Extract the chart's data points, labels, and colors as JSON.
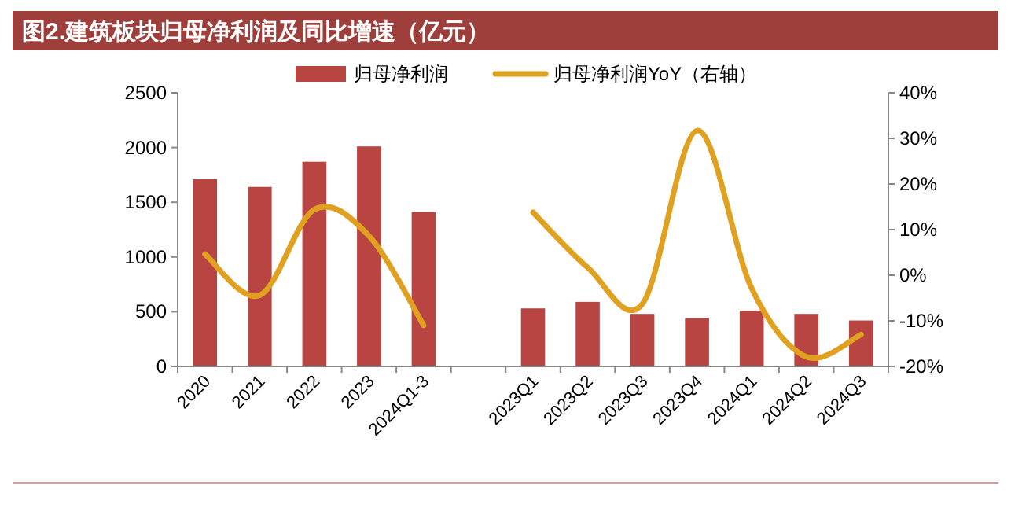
{
  "chart_data": {
    "type": "bar",
    "title": "图2.建筑板块归母净利润及同比增速（亿元）",
    "categories": [
      "2020",
      "2021",
      "2022",
      "2023",
      "2024Q1-3",
      null,
      "2023Q1",
      "2023Q2",
      "2023Q3",
      "2023Q4",
      "2024Q1",
      "2024Q2",
      "2024Q3"
    ],
    "series": [
      {
        "name": "归母净利润",
        "color": "#b94543",
        "values": [
          1710,
          1640,
          1870,
          2010,
          1410,
          null,
          530,
          590,
          480,
          440,
          510,
          480,
          420
        ]
      },
      {
        "name": "归母净利润YoY（右轴）",
        "type": "line",
        "axis": "y2",
        "color": "#e0a020",
        "values": [
          4.6,
          -4.4,
          14.4,
          8.6,
          -11,
          null,
          13.8,
          1.7,
          -6.3,
          31.7,
          -2.9,
          -17.9,
          -13
        ]
      }
    ],
    "ylim": [
      0,
      2500
    ],
    "yticks": [
      0,
      500,
      1000,
      1500,
      2000,
      2500
    ],
    "y2lim": [
      -20,
      40
    ],
    "y2ticks": [
      {
        "value": -20,
        "label": "-20%"
      },
      {
        "value": -10,
        "label": "-10%"
      },
      {
        "value": 0,
        "label": "0%"
      },
      {
        "value": 10,
        "label": "10%"
      },
      {
        "value": 20,
        "label": "20%"
      },
      {
        "value": 30,
        "label": "30%"
      },
      {
        "value": 40,
        "label": "40%"
      }
    ],
    "legend": "top",
    "grid": false
  }
}
